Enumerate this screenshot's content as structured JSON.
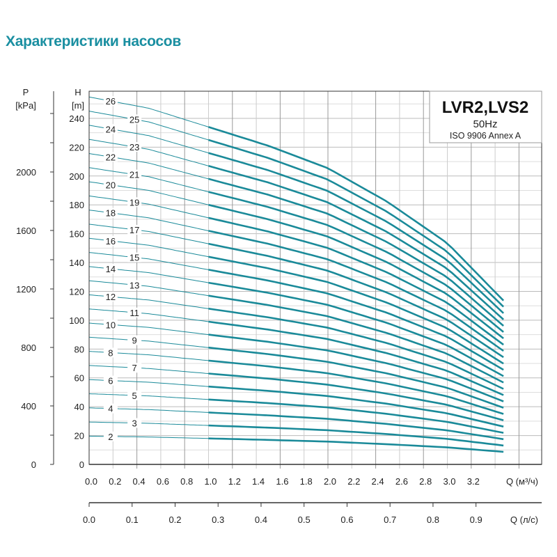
{
  "page_title": "Характеристики насосов",
  "chart_data": {
    "type": "line",
    "legend_box": {
      "model": "LVR2,LVS2",
      "frequency": "50Hz",
      "standard": "ISO 9906 Annex A"
    },
    "y_axis_pressure": {
      "label": "P",
      "unit": "[kPa]",
      "ticks": [
        0,
        400,
        800,
        1200,
        1600,
        2000
      ]
    },
    "y_axis_head": {
      "label": "H",
      "unit": "[m]",
      "ticks": [
        0,
        20,
        40,
        60,
        80,
        100,
        120,
        140,
        160,
        180,
        200,
        220,
        240
      ],
      "ylim": [
        0,
        260
      ]
    },
    "x_axis_flow_m3h": {
      "label": "Q (м³/ч)",
      "ticks": [
        "0.0",
        "0.2",
        "0.4",
        "0.6",
        "0.8",
        "1.0",
        "1.2",
        "1.4",
        "1.6",
        "1.8",
        "2.0",
        "2.2",
        "2.4",
        "2.6",
        "2.8",
        "3.0",
        "3.2"
      ],
      "xlim": [
        0,
        3.8
      ]
    },
    "x_axis_flow_ls": {
      "label": "Q (л/с)",
      "ticks": [
        "0.0",
        "0.1",
        "0.2",
        "0.3",
        "0.4",
        "0.5",
        "0.6",
        "0.7",
        "0.8",
        "0.9"
      ]
    },
    "grid": true,
    "line_color": "#1a8a99",
    "recommended_range_start_q": 1.0,
    "x": [
      0,
      0.5,
      1.0,
      1.5,
      2.0,
      2.5,
      3.0,
      3.47
    ],
    "series": [
      {
        "name": "2",
        "values": [
          19.6,
          19,
          18,
          17,
          15.8,
          14,
          11.8,
          8.7
        ]
      },
      {
        "name": "3",
        "values": [
          29.4,
          28.5,
          27,
          25.5,
          23.7,
          21,
          17.7,
          13.1
        ]
      },
      {
        "name": "4",
        "values": [
          39.2,
          38,
          36,
          34,
          31.6,
          28,
          23.6,
          17.5
        ]
      },
      {
        "name": "5",
        "values": [
          49,
          47.5,
          45,
          42.5,
          39.5,
          35,
          29.5,
          21.9
        ]
      },
      {
        "name": "6",
        "values": [
          58.8,
          57,
          54,
          51,
          47.4,
          42,
          35.4,
          26.2
        ]
      },
      {
        "name": "7",
        "values": [
          68.6,
          66.5,
          63,
          59.5,
          55.3,
          49,
          41.3,
          30.6
        ]
      },
      {
        "name": "8",
        "values": [
          78.4,
          76,
          72,
          68,
          63.2,
          56,
          47.2,
          35
        ]
      },
      {
        "name": "9",
        "values": [
          88.2,
          85.5,
          81,
          76.5,
          71.1,
          63,
          53.1,
          39.3
        ]
      },
      {
        "name": "10",
        "values": [
          98,
          95,
          90,
          85,
          79,
          70,
          59,
          43.7
        ]
      },
      {
        "name": "11",
        "values": [
          107.8,
          104.5,
          99,
          93.5,
          86.9,
          77,
          64.9,
          48.1
        ]
      },
      {
        "name": "12",
        "values": [
          117.6,
          114,
          108,
          102,
          94.8,
          84,
          70.8,
          52.4
        ]
      },
      {
        "name": "13",
        "values": [
          127.4,
          123.5,
          117,
          110.5,
          102.7,
          91,
          76.7,
          56.8
        ]
      },
      {
        "name": "14",
        "values": [
          137.2,
          133,
          126,
          119,
          110.6,
          98,
          82.6,
          61.2
        ]
      },
      {
        "name": "15",
        "values": [
          147,
          142.5,
          135,
          127.5,
          118.5,
          105,
          88.5,
          65.6
        ]
      },
      {
        "name": "16",
        "values": [
          156.8,
          152,
          144,
          136,
          126.4,
          112,
          94.4,
          69.9
        ]
      },
      {
        "name": "17",
        "values": [
          166.6,
          161.5,
          153,
          144.5,
          134.3,
          119,
          100.3,
          74.3
        ]
      },
      {
        "name": "18",
        "values": [
          176.4,
          171,
          162,
          153,
          142.2,
          126,
          106.2,
          78.7
        ]
      },
      {
        "name": "19",
        "values": [
          186.2,
          180.5,
          171,
          161.5,
          150.1,
          133,
          112.1,
          83
        ]
      },
      {
        "name": "20",
        "values": [
          196,
          190,
          180,
          170,
          158,
          140,
          118,
          87.4
        ]
      },
      {
        "name": "21",
        "values": [
          205.8,
          199.5,
          189,
          178.5,
          165.9,
          147,
          123.9,
          91.8
        ]
      },
      {
        "name": "22",
        "values": [
          215.6,
          209,
          198,
          187,
          173.8,
          154,
          129.8,
          96.1
        ]
      },
      {
        "name": "23",
        "values": [
          225.4,
          218.5,
          207,
          195.5,
          181.7,
          161,
          135.7,
          100.5
        ]
      },
      {
        "name": "24",
        "values": [
          235.2,
          228,
          216,
          204,
          189.6,
          168,
          141.6,
          104.9
        ]
      },
      {
        "name": "25",
        "values": [
          245,
          237.5,
          225,
          212.5,
          197.5,
          175,
          147.5,
          109.3
        ]
      },
      {
        "name": "26",
        "values": [
          254.8,
          247,
          234,
          221,
          205.4,
          182,
          153.4,
          113.6
        ]
      }
    ]
  }
}
